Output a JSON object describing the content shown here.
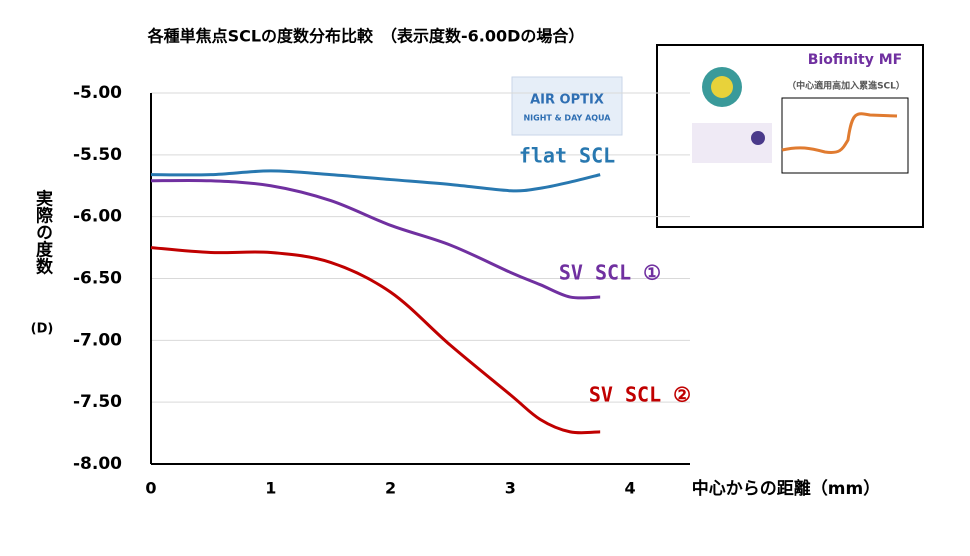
{
  "chart_data": {
    "type": "line",
    "title": "各種単焦点SCLの度数分布比較　（表示度数-6.00Dの場合）",
    "y_label": "実際の度数",
    "y_unit": "(D)",
    "x_label": "中心からの距離（mm）",
    "x": [
      0,
      0.5,
      1,
      1.5,
      2,
      2.5,
      3,
      3.25,
      3.5,
      3.75
    ],
    "series": [
      {
        "name": "flat SCL",
        "color": "#2878b0",
        "values": [
          -5.66,
          -5.66,
          -5.63,
          -5.66,
          -5.7,
          -5.74,
          -5.79,
          -5.77,
          -5.72,
          -5.66
        ]
      },
      {
        "name": "SV SCL ①",
        "color": "#7030a0",
        "values": [
          -5.71,
          -5.71,
          -5.75,
          -5.87,
          -6.07,
          -6.23,
          -6.45,
          -6.55,
          -6.65,
          -6.65
        ]
      },
      {
        "name": "SV SCL ②",
        "color": "#c00000",
        "values": [
          -6.25,
          -6.29,
          -6.29,
          -6.37,
          -6.61,
          -7.04,
          -7.44,
          -7.64,
          -7.74,
          -7.74
        ]
      }
    ],
    "xlim": [
      0,
      4.5
    ],
    "xticks": [
      0,
      1,
      2,
      3,
      4
    ],
    "ylim": [
      -8,
      -5
    ],
    "yticks": [
      {
        "value": -5,
        "label": "-5.00"
      },
      {
        "value": -5.5,
        "label": "-5.50"
      },
      {
        "value": -6,
        "label": "-6.00"
      },
      {
        "value": -6.5,
        "label": "-6.50"
      },
      {
        "value": -7,
        "label": "-7.00"
      },
      {
        "value": -7.5,
        "label": "-7.50"
      },
      {
        "value": -8,
        "label": "-8.00"
      }
    ],
    "grid": true,
    "logo": [
      "AIR OPTIX",
      "NIGHT & DAY AQUA"
    ],
    "inset": {
      "title": "Biofinity MF",
      "subtitle": "（中心適用高加入累進SCL）"
    }
  }
}
